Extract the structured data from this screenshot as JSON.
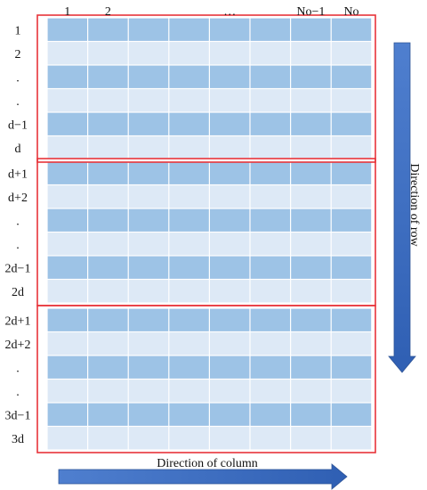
{
  "column_labels": [
    {
      "text": "1",
      "col": 1
    },
    {
      "text": "2",
      "col": 2
    },
    {
      "text": "…",
      "col": 5
    },
    {
      "text": "No−1",
      "col": 7
    },
    {
      "text": "No",
      "col": 8
    }
  ],
  "row_labels": [
    "1",
    "2",
    ".",
    ".",
    "d−1",
    "d",
    "d+1",
    "d+2",
    ".",
    ".",
    "2d−1",
    "2d",
    "2d+1",
    "2d+2",
    ".",
    ".",
    "3d−1",
    "3d"
  ],
  "num_columns": 8,
  "rows_per_block": 6,
  "num_blocks": 3,
  "arrows": {
    "row_direction": "Direction of row",
    "column_direction": "Direction of column"
  },
  "colors": {
    "dark_cell": "#9dc3e6",
    "light_cell": "#dde9f6",
    "block_border": "#e8343a",
    "arrow": "#4472c4"
  }
}
